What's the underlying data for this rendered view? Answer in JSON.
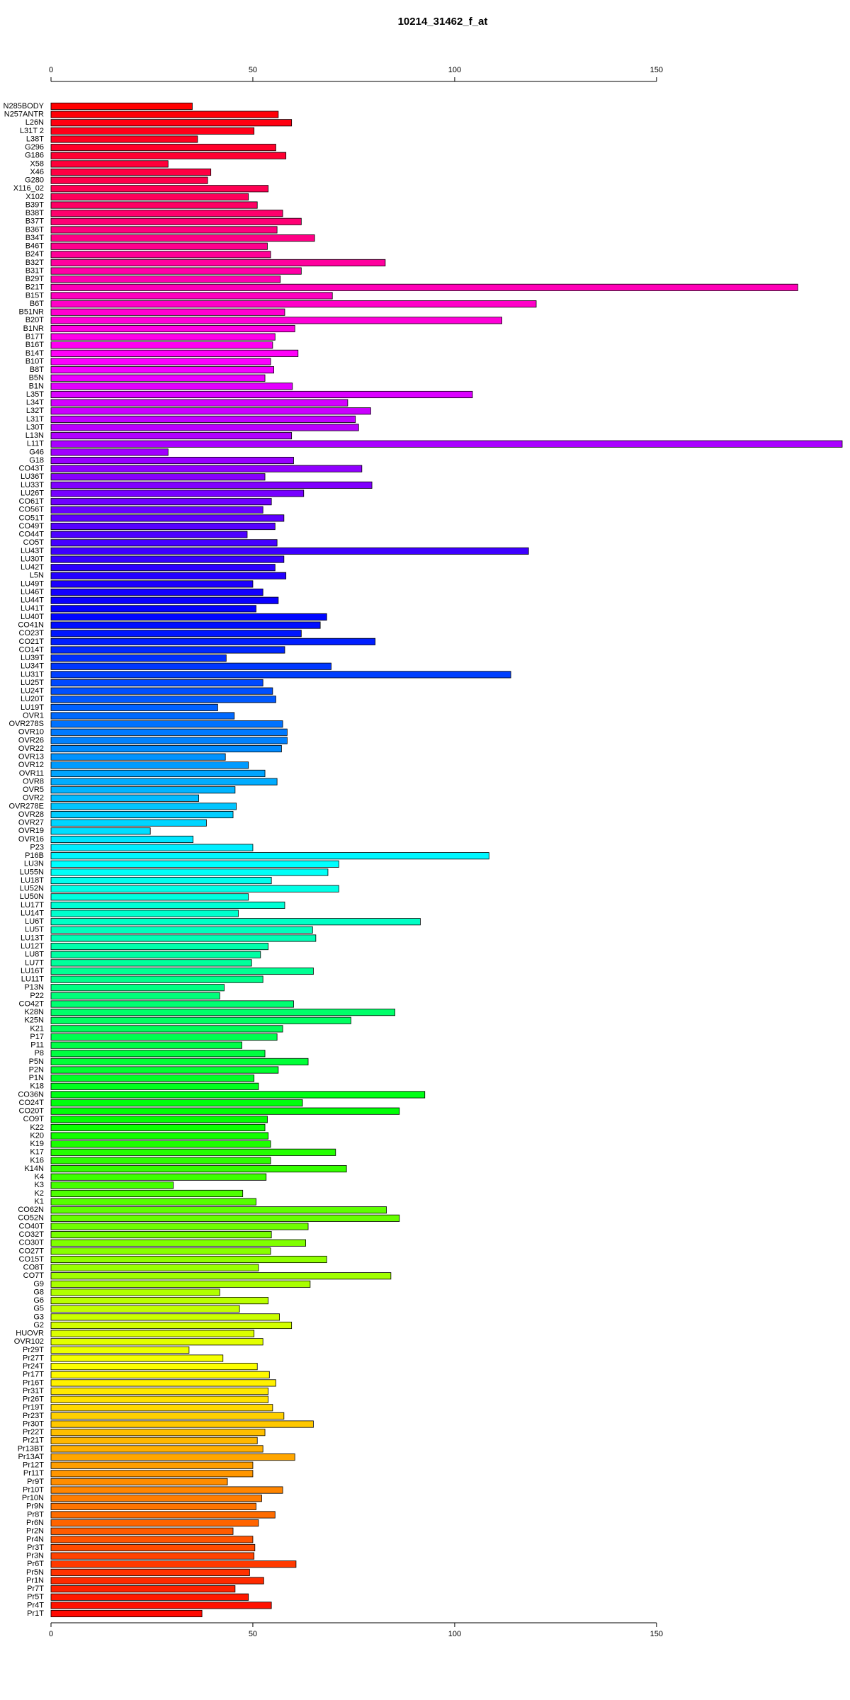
{
  "chart_data": {
    "type": "barh",
    "title": "10214_31462_f_at",
    "categories": [
      "N285BODY",
      "N257ANTR",
      "L26N",
      "L31T 2",
      "L38T",
      "G296",
      "G186",
      "X58",
      "X46",
      "G280",
      "X116_02",
      "X102",
      "B39T",
      "B38T",
      "B37T",
      "B36T",
      "B34T",
      "B46T",
      "B24T",
      "B32T",
      "B31T",
      "B29T",
      "B21T",
      "B15T",
      "B6T",
      "B51NR",
      "B20T",
      "B1NR",
      "B17T",
      "B16T",
      "B14T",
      "B10T",
      "B8T",
      "B5N",
      "B1N",
      "L35T",
      "L34T",
      "L32T",
      "L31T",
      "L30T",
      "L13N",
      "L11T",
      "G46",
      "G18",
      "CO43T",
      "LU36T",
      "LU33T",
      "LU26T",
      "CO61T",
      "CO56T",
      "CO51T",
      "CO49T",
      "CO44T",
      "CO5T",
      "LU43T",
      "LU30T",
      "LU42T",
      "L5N",
      "LU49T",
      "LU46T",
      "LU44T",
      "LU41T",
      "LU40T",
      "CO41N",
      "CO23T",
      "CO21T",
      "CO14T",
      "LU39T",
      "LU34T",
      "LU31T",
      "LU25T",
      "LU24T",
      "LU20T",
      "LU19T",
      "OVR1",
      "OVR278S",
      "OVR10",
      "OVR26",
      "OVR22",
      "OVR13",
      "OVR12",
      "OVR11",
      "OVR8",
      "OVR5",
      "OVR2",
      "OVR278E",
      "OVR28",
      "OVR27",
      "OVR19",
      "OVR16",
      "P23",
      "P16B",
      "LU3N",
      "LU55N",
      "LU18T",
      "LU52N",
      "LU50N",
      "LU17T",
      "LU14T",
      "LU6T",
      "LU5T",
      "LU13T",
      "LU12T",
      "LU8T",
      "LU7T",
      "LU16T",
      "LU11T",
      "P13N",
      "P22",
      "CO42T",
      "K28N",
      "K25N",
      "K21",
      "P17",
      "P11",
      "P8",
      "P5N",
      "P2N",
      "P1N",
      "K18",
      "CO36N",
      "CO24T",
      "CO20T",
      "CO9T",
      "K22",
      "K20",
      "K19",
      "K17",
      "K16",
      "K14N",
      "K4",
      "K3",
      "K2",
      "K1",
      "CO62N",
      "CO52N",
      "CO40T",
      "CO32T",
      "CO30T",
      "CO27T",
      "CO15T",
      "CO8T",
      "CO7T",
      "G9",
      "G8",
      "G6",
      "G5",
      "G3",
      "G2",
      "HUOVR",
      "OVR102",
      "Pr29T",
      "Pr27T",
      "Pr24T",
      "Pr17T",
      "Pr16T",
      "Pr31T",
      "Pr26T",
      "Pr19T",
      "Pr23T",
      "Pr30T",
      "Pr22T",
      "Pr21T",
      "Pr13BT",
      "Pr13AT",
      "Pr12T",
      "Pr11T",
      "Pr9T",
      "Pr10T",
      "Pr10N",
      "Pr9N",
      "Pr8T",
      "Pr6N",
      "Pr2N",
      "Pr4N",
      "Pr3T",
      "Pr3N",
      "Pr6T",
      "Pr5N",
      "Pr1N",
      "Pr7T",
      "Pr5T",
      "Pr4T",
      "Pr1T"
    ],
    "values": [
      35,
      56.3,
      59.6,
      50.3,
      36.3,
      55.7,
      58.2,
      29,
      39.6,
      38.8,
      53.8,
      48.9,
      51.1,
      57.4,
      62,
      56,
      65.3,
      53.6,
      54.4,
      82.8,
      62,
      56.8,
      185,
      69.7,
      120.2,
      57.9,
      111.7,
      60.4,
      55.5,
      54.9,
      61.2,
      54.4,
      55.2,
      53,
      59.8,
      104.4,
      73.5,
      79.2,
      75.4,
      76.2,
      59.6,
      196,
      29,
      60.1,
      77,
      53,
      79.5,
      62.6,
      54.6,
      52.5,
      57.7,
      55.5,
      48.6,
      56,
      118.3,
      57.7,
      55.5,
      58.2,
      50,
      52.5,
      56.3,
      50.8,
      68.3,
      66.7,
      62,
      80.3,
      57.9,
      43.4,
      69.4,
      113.9,
      52.5,
      54.9,
      55.7,
      41.3,
      45.4,
      57.4,
      58.5,
      58.5,
      57.1,
      43.2,
      48.9,
      53,
      56,
      45.6,
      36.6,
      45.9,
      45.1,
      38.5,
      24.6,
      35.2,
      50,
      108.5,
      71.3,
      68.6,
      54.6,
      71.3,
      48.9,
      57.9,
      46.4,
      91.5,
      64.8,
      65.6,
      53.8,
      51.9,
      49.7,
      65,
      52.5,
      42.9,
      41.8,
      60.1,
      85.2,
      74.3,
      57.4,
      56,
      47.3,
      53,
      63.7,
      56.3,
      50.3,
      51.4,
      92.6,
      62.3,
      86.3,
      53.6,
      53,
      53.8,
      54.4,
      70.5,
      54.4,
      73.2,
      53.3,
      30.3,
      47.5,
      50.8,
      83.1,
      86.3,
      63.7,
      54.6,
      63.1,
      54.4,
      68.3,
      51.4,
      84.2,
      64.2,
      41.8,
      53.8,
      46.7,
      56.6,
      59.6,
      50.3,
      52.5,
      34.2,
      42.6,
      51.1,
      54.1,
      55.7,
      53.8,
      53.8,
      54.9,
      57.7,
      65,
      53,
      51.1,
      52.5,
      60.4,
      50,
      50,
      43.7,
      57.4,
      52.2,
      50.8,
      55.5,
      51.4,
      45.1,
      50,
      50.5,
      50.3,
      60.7,
      49.2,
      52.7,
      45.6,
      48.9,
      54.6,
      37.4
    ],
    "bar_colors": "rainbow",
    "xlim": [
      0,
      196
    ],
    "xticks": [
      0,
      50,
      100,
      150
    ]
  }
}
